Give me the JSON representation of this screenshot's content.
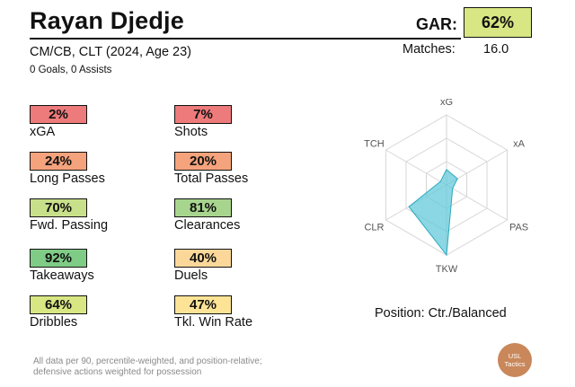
{
  "header": {
    "player_name": "Rayan Djedje",
    "gar_label": "GAR:",
    "gar_value": "62%",
    "gar_color": "#d8e683",
    "subtitle": "CM/CB, CLT (2024, Age 23)",
    "matches_label": "Matches:",
    "matches_value": "16.0",
    "goals_assists": "0 Goals,  0 Assists"
  },
  "stats": [
    {
      "value": "2%",
      "label": "xGA",
      "color": "#ee7b7b"
    },
    {
      "value": "7%",
      "label": "Shots",
      "color": "#ee7b7b"
    },
    {
      "value": "24%",
      "label": "Long Passes",
      "color": "#f5a37c"
    },
    {
      "value": "20%",
      "label": "Total Passes",
      "color": "#f5a37c"
    },
    {
      "value": "70%",
      "label": "Fwd. Passing",
      "color": "#c8e08a"
    },
    {
      "value": "81%",
      "label": "Clearances",
      "color": "#a7d58d"
    },
    {
      "value": "92%",
      "label": "Takeaways",
      "color": "#7fcc86"
    },
    {
      "value": "40%",
      "label": "Duels",
      "color": "#fbd89a"
    },
    {
      "value": "64%",
      "label": "Dribbles",
      "color": "#d8e683"
    },
    {
      "value": "47%",
      "label": "Tkl. Win Rate",
      "color": "#fde396"
    }
  ],
  "radar": {
    "axes": [
      "xG",
      "xA",
      "PAS",
      "TKW",
      "CLR",
      "TCH"
    ],
    "values": [
      0.22,
      0.18,
      0.1,
      1.0,
      0.62,
      0.1
    ],
    "fill_color": "#5ec8d8",
    "stroke_color": "#2aa9be"
  },
  "position_label": "Position: Ctr./Balanced",
  "footnote_line1": "All data per 90, percentile-weighted, and position-relative;",
  "footnote_line2": "defensive actions weighted for possession",
  "logo_line1": "USL",
  "logo_line2": "Tactics"
}
